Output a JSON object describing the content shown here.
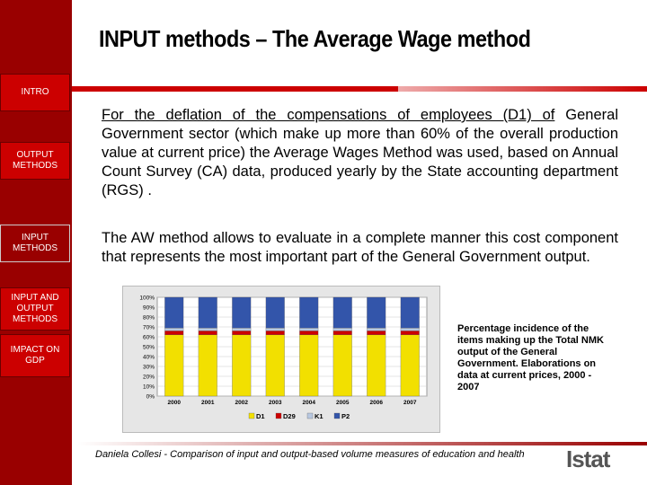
{
  "title": "INPUT methods – The Average Wage method",
  "sidebar": {
    "items": [
      {
        "label": "INTRO"
      },
      {
        "label": "OUTPUT METHODS"
      },
      {
        "label": "INPUT METHODS"
      },
      {
        "label": "INPUT AND OUTPUT METHODS"
      },
      {
        "label": "IMPACT ON GDP"
      }
    ]
  },
  "paragraphs": {
    "p1_link": "For the deflation of the compensations of employees (D1) of",
    "p1_rest": "General Government sector (which make up more than 60% of the overall production value at current price) the Average Wages Method was used, based on Annual Count Survey (CA) data, produced yearly by the State accounting department (RGS) .",
    "p2": "The AW method allows to evaluate in a complete manner this cost component that represents the most important part of the General Government output."
  },
  "caption": "Percentage incidence of the items making up the Total NMK output of the General Government. Elaborations on data at current prices, 2000 - 2007",
  "footer": "Daniela Collesi - Comparison of input and output-based volume measures of education and health",
  "logo": "Istat",
  "chart_data": {
    "type": "bar",
    "stacked": true,
    "categories": [
      "2000",
      "2001",
      "2002",
      "2003",
      "2004",
      "2005",
      "2006",
      "2007"
    ],
    "yticks": [
      "0%",
      "10%",
      "20%",
      "30%",
      "40%",
      "50%",
      "60%",
      "70%",
      "80%",
      "90%",
      "100%"
    ],
    "ylim": [
      0,
      100
    ],
    "series": [
      {
        "name": "D1",
        "color": "#f2e000",
        "values": [
          62,
          62,
          62,
          62,
          62,
          62,
          62,
          62
        ]
      },
      {
        "name": "D29",
        "color": "#cc0000",
        "values": [
          4,
          4,
          4,
          4,
          4,
          4,
          4,
          4
        ]
      },
      {
        "name": "K1",
        "color": "#b8c8e0",
        "values": [
          3,
          3,
          3,
          3,
          3,
          3,
          3,
          3
        ]
      },
      {
        "name": "P2",
        "color": "#3355aa",
        "values": [
          31,
          31,
          31,
          31,
          31,
          31,
          31,
          31
        ]
      }
    ],
    "legend_position": "bottom"
  }
}
